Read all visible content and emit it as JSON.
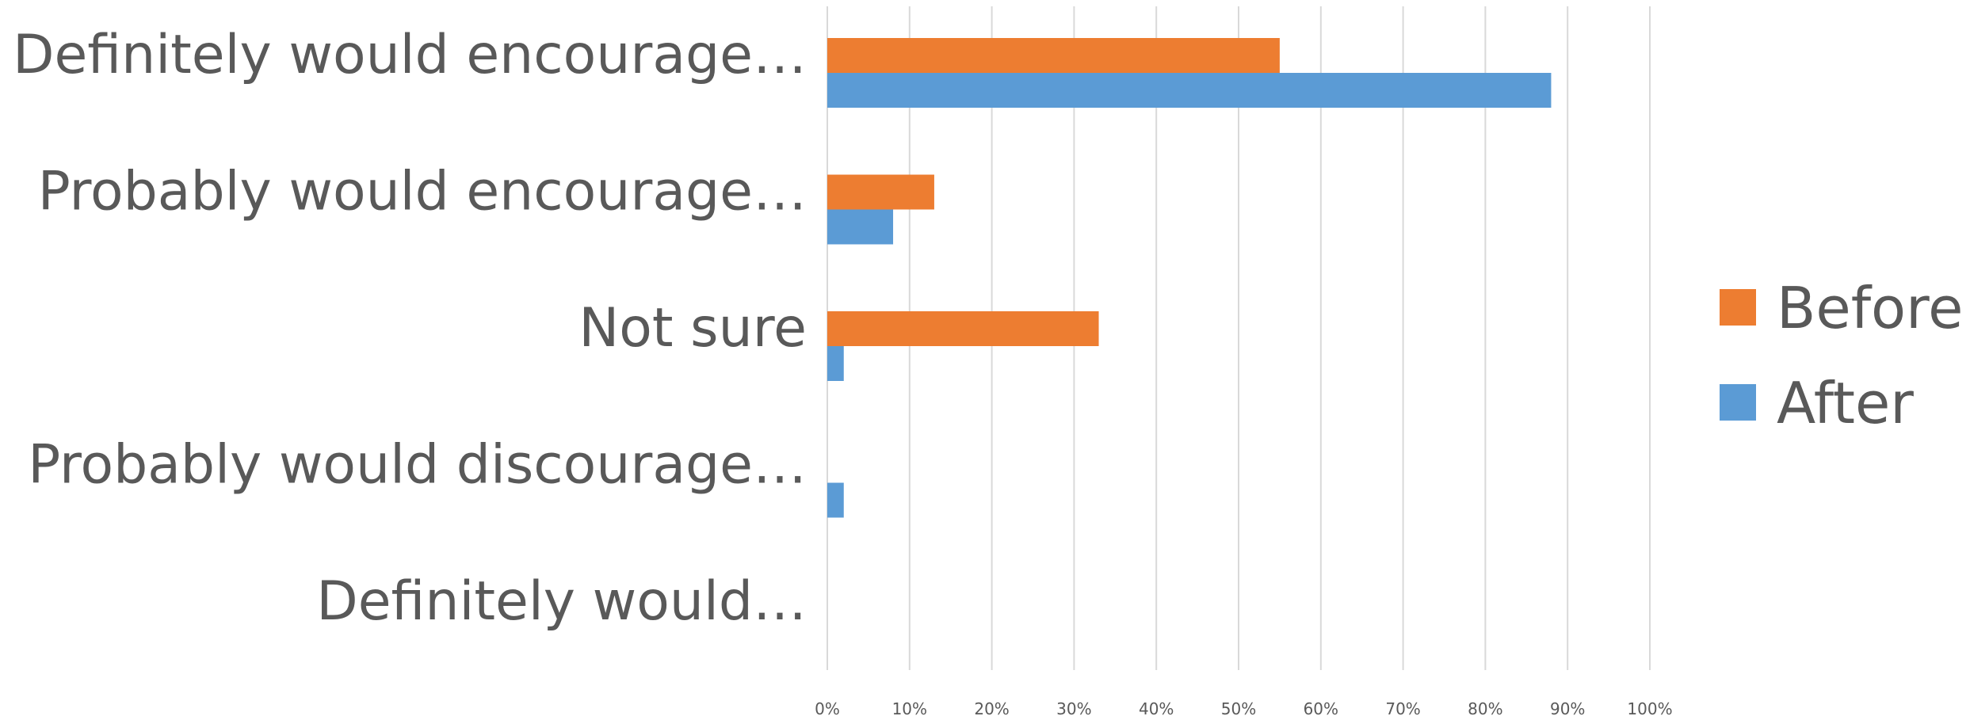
{
  "chart_data": {
    "type": "bar",
    "orientation": "horizontal",
    "categories": [
      "Definitely would encourage…",
      "Probably would encourage…",
      "Not sure",
      "Probably would discourage…",
      "Definitely would…"
    ],
    "series": [
      {
        "name": "Before",
        "color": "#ED7D31",
        "values": [
          55,
          13,
          33,
          0,
          0
        ]
      },
      {
        "name": "After",
        "color": "#5B9BD5",
        "values": [
          88,
          8,
          2,
          2,
          0
        ]
      }
    ],
    "x_ticks": [
      "0%",
      "10%",
      "20%",
      "30%",
      "40%",
      "50%",
      "60%",
      "70%",
      "80%",
      "90%",
      "100%"
    ],
    "xlim": [
      0,
      100
    ],
    "unit": "%",
    "grid": true,
    "legend_position": "right",
    "title": "",
    "xlabel": "",
    "ylabel": ""
  }
}
